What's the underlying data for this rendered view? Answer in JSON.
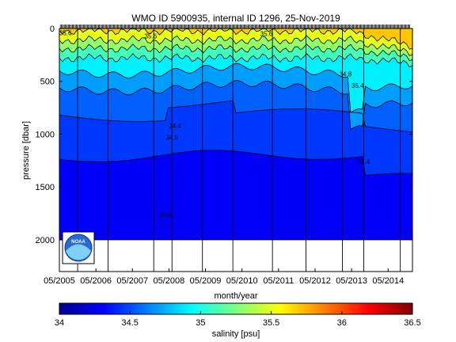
{
  "chart_data": {
    "type": "heatmap",
    "title": "WMO ID 5900935, internal ID 1296, 25-Nov-2019",
    "xlabel": "month/year",
    "ylabel": "pressure [dbar]",
    "colorbar_label": "salinity [psu]",
    "x_range": [
      "2005-05",
      "2015-01"
    ],
    "ylim": [
      2300,
      0
    ],
    "y_reversed": true,
    "y_ticks": [
      0,
      500,
      1000,
      1500,
      2000
    ],
    "x_ticks": [
      "05/2005",
      "05/2006",
      "05/2007",
      "05/2008",
      "05/2009",
      "05/2010",
      "05/2011",
      "05/2012",
      "05/2013",
      "05/2014"
    ],
    "colorbar_range": [
      34,
      36.5
    ],
    "colorbar_ticks": [
      34,
      34.5,
      35,
      35.5,
      36,
      36.5
    ],
    "colormap": "jet",
    "grid": false,
    "max_pressure": 2000,
    "isohaline_levels": [
      34.4,
      34.5,
      34.6,
      34.8,
      35.0,
      35.2,
      35.4,
      35.6
    ],
    "contour_labels": [
      {
        "text": "35.6",
        "date": "2005-07",
        "p": 40
      },
      {
        "text": "35.6",
        "date": "2007-11",
        "p": 70
      },
      {
        "text": "34.4",
        "date": "2008-07",
        "p": 920
      },
      {
        "text": "34.5",
        "date": "2008-06",
        "p": 1030
      },
      {
        "text": "34.6",
        "date": "2008-04",
        "p": 1760
      },
      {
        "text": "35.6",
        "date": "2011-01",
        "p": 50
      },
      {
        "text": "35.4",
        "date": "2013-07",
        "p": 540
      },
      {
        "text": "34.4",
        "date": "2013-09",
        "p": 1260
      },
      {
        "text": "34.8",
        "date": "2013-03",
        "p": 430
      }
    ],
    "profile_lines_x": [
      "2005-11",
      "2006-09",
      "2007-12",
      "2008-06",
      "2009-04",
      "2010-02",
      "2011-03",
      "2012-02",
      "2013-02",
      "2013-09",
      "2014-09"
    ],
    "logo_text": "NOAA"
  }
}
